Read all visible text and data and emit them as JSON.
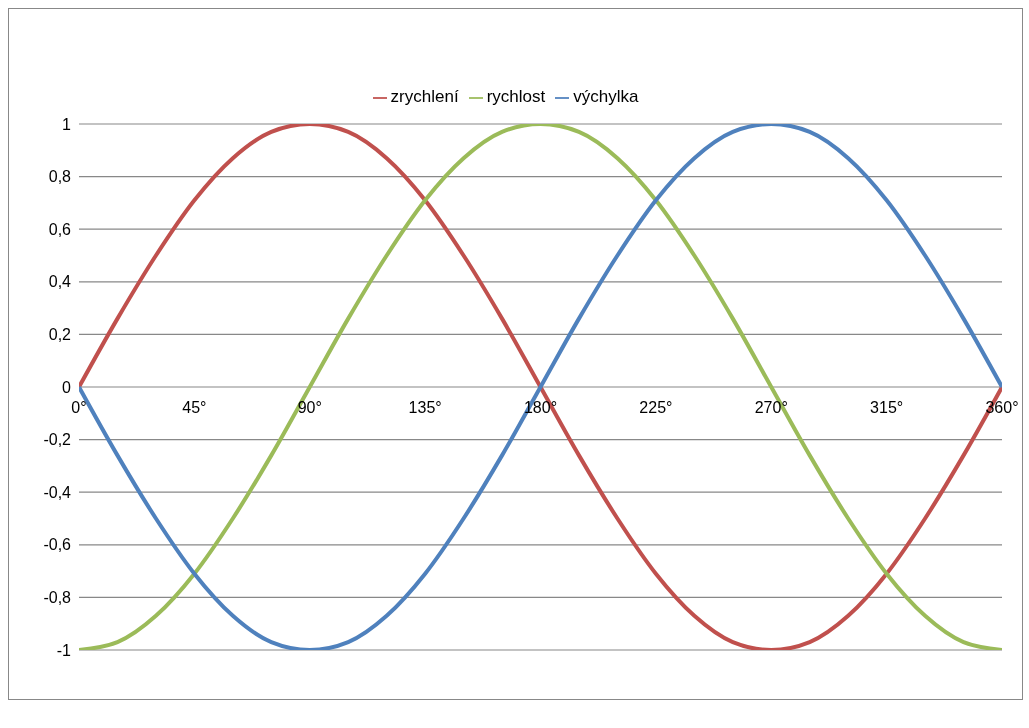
{
  "chart_data": {
    "type": "line",
    "x": [
      0,
      15,
      30,
      45,
      60,
      75,
      90,
      105,
      120,
      135,
      150,
      165,
      180,
      195,
      210,
      225,
      240,
      255,
      270,
      285,
      300,
      315,
      330,
      345,
      360
    ],
    "series": [
      {
        "name": "zrychlení",
        "color": "#c0504d",
        "values": [
          0,
          0.26,
          0.5,
          0.71,
          0.87,
          0.97,
          1,
          0.97,
          0.87,
          0.71,
          0.5,
          0.26,
          0,
          -0.26,
          -0.5,
          -0.71,
          -0.87,
          -0.97,
          -1,
          -0.97,
          -0.87,
          -0.71,
          -0.5,
          -0.26,
          0
        ]
      },
      {
        "name": "rychlost",
        "color": "#9bbb59",
        "values": [
          -1,
          -0.97,
          -0.87,
          -0.71,
          -0.5,
          -0.26,
          0,
          0.26,
          0.5,
          0.71,
          0.87,
          0.97,
          1,
          0.97,
          0.87,
          0.71,
          0.5,
          0.26,
          0,
          -0.26,
          -0.5,
          -0.71,
          -0.87,
          -0.97,
          -1
        ]
      },
      {
        "name": "výchylka",
        "color": "#4f81bd",
        "values": [
          0,
          -0.26,
          -0.5,
          -0.71,
          -0.87,
          -0.97,
          -1,
          -0.97,
          -0.87,
          -0.71,
          -0.5,
          -0.26,
          0,
          0.26,
          0.5,
          0.71,
          0.87,
          0.97,
          1,
          0.97,
          0.87,
          0.71,
          0.5,
          0.26,
          0
        ]
      }
    ],
    "xlim": [
      0,
      360
    ],
    "xticks": [
      {
        "value": 0,
        "label": "0°"
      },
      {
        "value": 45,
        "label": "45°"
      },
      {
        "value": 90,
        "label": "90°"
      },
      {
        "value": 135,
        "label": "135°"
      },
      {
        "value": 180,
        "label": "180°"
      },
      {
        "value": 225,
        "label": "225°"
      },
      {
        "value": 270,
        "label": "270°"
      },
      {
        "value": 315,
        "label": "315°"
      },
      {
        "value": 360,
        "label": "360°"
      }
    ],
    "ylim": [
      -1,
      1
    ],
    "yticks": [
      {
        "value": -1,
        "label": "-1"
      },
      {
        "value": -0.8,
        "label": "-0,8"
      },
      {
        "value": -0.6,
        "label": "-0,6"
      },
      {
        "value": -0.4,
        "label": "-0,4"
      },
      {
        "value": -0.2,
        "label": "-0,2"
      },
      {
        "value": 0,
        "label": "0"
      },
      {
        "value": 0.2,
        "label": "0,2"
      },
      {
        "value": 0.4,
        "label": "0,4"
      },
      {
        "value": 0.6,
        "label": "0,6"
      },
      {
        "value": 0.8,
        "label": "0,8"
      },
      {
        "value": 1,
        "label": "1"
      }
    ],
    "grid": "y",
    "legend": "top",
    "marker": "none",
    "line_style": "solid"
  }
}
